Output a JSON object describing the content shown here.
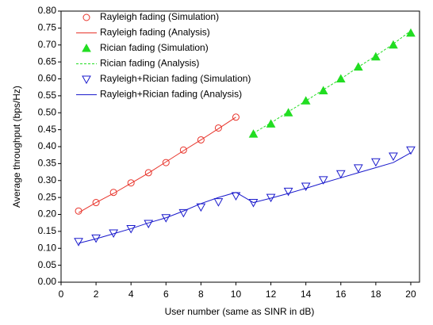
{
  "chart_data": {
    "type": "line",
    "x_label": "User number (same as SINR in dB)",
    "y_label": "Average throughput (bps/Hz)",
    "xlim": [
      0,
      20.5
    ],
    "xticks": [
      0,
      2,
      4,
      6,
      8,
      10,
      12,
      14,
      16,
      18,
      20
    ],
    "ylim": [
      0,
      0.8
    ],
    "yticks": [
      {
        "value": 0,
        "label": "0.00"
      },
      {
        "value": 0.05,
        "label": "0.05"
      },
      {
        "value": 0.1,
        "label": "0.10"
      },
      {
        "value": 0.15,
        "label": "0.15"
      },
      {
        "value": 0.2,
        "label": "0.20"
      },
      {
        "value": 0.25,
        "label": "0.25"
      },
      {
        "value": 0.3,
        "label": "0.30"
      },
      {
        "value": 0.35,
        "label": "0.35"
      },
      {
        "value": 0.4,
        "label": "0.40"
      },
      {
        "value": 0.45,
        "label": "0.45"
      },
      {
        "value": 0.5,
        "label": "0.50"
      },
      {
        "value": 0.55,
        "label": "0.55"
      },
      {
        "value": 0.6,
        "label": "0.60"
      },
      {
        "value": 0.65,
        "label": "0.65"
      },
      {
        "value": 0.7,
        "label": "0.70"
      },
      {
        "value": 0.75,
        "label": "0.75"
      },
      {
        "value": 0.8,
        "label": "0.80"
      }
    ],
    "legend": "top-left",
    "series": [
      {
        "name": "Rayleigh fading (Simulation)",
        "color": "#e8332a",
        "mode": "markers",
        "marker": "circle",
        "x": [
          1,
          2,
          3,
          4,
          5,
          6,
          7,
          8,
          9,
          10
        ],
        "values": [
          0.21,
          0.235,
          0.265,
          0.293,
          0.323,
          0.353,
          0.39,
          0.42,
          0.455,
          0.487
        ]
      },
      {
        "name": "Rayleigh fading (Analysis)",
        "color": "#e8332a",
        "mode": "lines",
        "dash": "solid",
        "x": [
          1,
          2,
          3,
          4,
          5,
          6,
          7,
          8,
          9,
          10
        ],
        "values": [
          0.205,
          0.235,
          0.262,
          0.292,
          0.322,
          0.355,
          0.388,
          0.42,
          0.453,
          0.487
        ]
      },
      {
        "name": "Rician fading (Simulation)",
        "color": "#22dd22",
        "mode": "markers",
        "marker": "triangle",
        "x": [
          11,
          12,
          13,
          14,
          15,
          16,
          17,
          18,
          19,
          20
        ],
        "values": [
          0.437,
          0.467,
          0.5,
          0.535,
          0.565,
          0.6,
          0.635,
          0.665,
          0.7,
          0.735
        ]
      },
      {
        "name": "Rician fading (Analysis)",
        "color": "#22dd22",
        "mode": "lines",
        "dash": "dashed",
        "x": [
          11,
          12,
          13,
          14,
          15,
          16,
          17,
          18,
          19,
          20
        ],
        "values": [
          0.44,
          0.47,
          0.503,
          0.535,
          0.568,
          0.6,
          0.635,
          0.668,
          0.703,
          0.742
        ]
      },
      {
        "name": "Rayleigh+Rician fading (Simulation)",
        "color": "#1a1acc",
        "mode": "markers",
        "marker": "triangle-down",
        "x": [
          1,
          2,
          3,
          4,
          5,
          6,
          7,
          8,
          9,
          10,
          11,
          12,
          13,
          14,
          15,
          16,
          17,
          18,
          19,
          20
        ],
        "values": [
          0.12,
          0.13,
          0.145,
          0.158,
          0.173,
          0.19,
          0.205,
          0.222,
          0.237,
          0.255,
          0.235,
          0.25,
          0.268,
          0.283,
          0.302,
          0.32,
          0.337,
          0.355,
          0.372,
          0.39
        ]
      },
      {
        "name": "Rayleigh+Rician fading (Analysis)",
        "color": "#1a1acc",
        "mode": "lines",
        "dash": "solid",
        "x": [
          1,
          2,
          3,
          4,
          5,
          6,
          7,
          8,
          9,
          10,
          11,
          12,
          13,
          14,
          15,
          16,
          17,
          18,
          19,
          20
        ],
        "values": [
          0.115,
          0.128,
          0.143,
          0.158,
          0.175,
          0.19,
          0.21,
          0.232,
          0.25,
          0.265,
          0.235,
          0.248,
          0.262,
          0.277,
          0.293,
          0.308,
          0.323,
          0.338,
          0.353,
          0.382
        ]
      }
    ]
  }
}
